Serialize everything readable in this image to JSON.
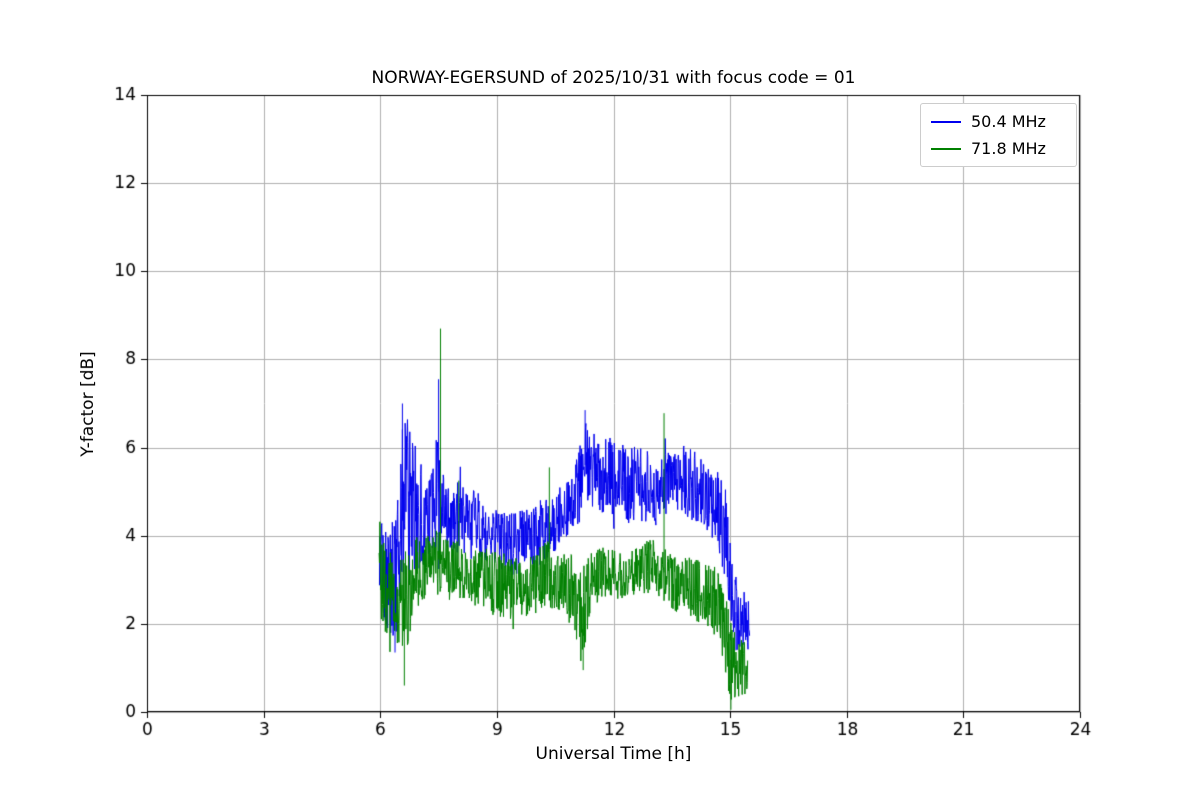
{
  "title": "NORWAY-EGERSUND of 2025/10/31 with focus code = 01",
  "chart_data": {
    "type": "line",
    "title": "NORWAY-EGERSUND of 2025/10/31 with focus code = 01",
    "xlabel": "Universal Time [h]",
    "ylabel": "Y-factor [dB]",
    "xlim": [
      0,
      24
    ],
    "ylim": [
      0,
      14
    ],
    "xticks": [
      0,
      3,
      6,
      9,
      12,
      15,
      18,
      21,
      24
    ],
    "yticks": [
      0,
      2,
      4,
      6,
      8,
      10,
      12,
      14
    ],
    "grid": true,
    "grid_color": "#b0b0b0",
    "axis_color": "#000000",
    "legend_position": "upper right",
    "sample_step_h": 0.01,
    "series": [
      {
        "name": "50.4 MHz",
        "color": "#0000ee",
        "x_range": [
          5.98,
          15.5
        ],
        "envelope": [
          [
            5.98,
            3.3,
            1.1
          ],
          [
            6.2,
            3.0,
            1.2
          ],
          [
            6.4,
            3.1,
            1.4
          ],
          [
            6.55,
            4.8,
            1.7
          ],
          [
            6.7,
            5.0,
            1.8
          ],
          [
            6.9,
            4.6,
            1.5
          ],
          [
            7.1,
            4.3,
            1.0
          ],
          [
            7.3,
            4.4,
            1.0
          ],
          [
            7.5,
            5.0,
            1.5
          ],
          [
            7.65,
            4.5,
            0.9
          ],
          [
            7.9,
            4.4,
            0.9
          ],
          [
            8.2,
            4.3,
            0.8
          ],
          [
            8.5,
            4.2,
            0.8
          ],
          [
            8.8,
            4.0,
            0.7
          ],
          [
            9.1,
            3.9,
            0.7
          ],
          [
            9.4,
            3.8,
            0.7
          ],
          [
            9.7,
            3.9,
            0.7
          ],
          [
            10.0,
            4.0,
            0.7
          ],
          [
            10.3,
            4.2,
            0.8
          ],
          [
            10.6,
            4.4,
            0.7
          ],
          [
            10.9,
            4.7,
            0.6
          ],
          [
            11.15,
            5.2,
            0.9
          ],
          [
            11.3,
            5.7,
            0.9
          ],
          [
            11.5,
            5.5,
            0.9
          ],
          [
            11.8,
            5.4,
            0.9
          ],
          [
            12.1,
            5.3,
            0.9
          ],
          [
            12.5,
            5.2,
            0.9
          ],
          [
            12.9,
            5.1,
            0.8
          ],
          [
            13.2,
            5.0,
            0.8
          ],
          [
            13.5,
            5.2,
            0.8
          ],
          [
            13.8,
            5.3,
            0.8
          ],
          [
            14.1,
            5.1,
            0.8
          ],
          [
            14.4,
            4.9,
            0.8
          ],
          [
            14.7,
            4.6,
            0.9
          ],
          [
            14.95,
            3.8,
            1.2
          ],
          [
            15.1,
            2.4,
            0.9
          ],
          [
            15.25,
            2.0,
            0.7
          ],
          [
            15.5,
            2.0,
            0.6
          ]
        ],
        "spikes": [
          [
            6.38,
            1.35
          ],
          [
            6.57,
            7.0
          ],
          [
            7.5,
            7.55
          ],
          [
            11.27,
            6.85
          ],
          [
            15.15,
            1.4
          ]
        ]
      },
      {
        "name": "71.8 MHz",
        "color": "#008000",
        "x_range": [
          5.97,
          15.45
        ],
        "envelope": [
          [
            5.97,
            3.0,
            1.4
          ],
          [
            6.2,
            2.7,
            1.0
          ],
          [
            6.45,
            2.5,
            1.0
          ],
          [
            6.7,
            2.6,
            1.1
          ],
          [
            6.95,
            3.1,
            0.9
          ],
          [
            7.2,
            3.4,
            0.7
          ],
          [
            7.45,
            3.4,
            0.8
          ],
          [
            7.7,
            3.3,
            0.6
          ],
          [
            8.0,
            3.3,
            0.7
          ],
          [
            8.3,
            3.1,
            0.6
          ],
          [
            8.6,
            3.0,
            0.7
          ],
          [
            8.9,
            3.0,
            0.8
          ],
          [
            9.2,
            2.9,
            0.8
          ],
          [
            9.5,
            2.8,
            0.7
          ],
          [
            9.8,
            2.8,
            0.7
          ],
          [
            10.1,
            3.0,
            0.8
          ],
          [
            10.4,
            3.1,
            0.8
          ],
          [
            10.7,
            2.9,
            0.7
          ],
          [
            11.0,
            2.7,
            0.9
          ],
          [
            11.2,
            2.3,
            1.2
          ],
          [
            11.4,
            3.0,
            0.7
          ],
          [
            11.7,
            3.2,
            0.6
          ],
          [
            12.0,
            3.1,
            0.6
          ],
          [
            12.4,
            3.2,
            0.6
          ],
          [
            12.8,
            3.3,
            0.6
          ],
          [
            13.1,
            3.3,
            0.6
          ],
          [
            13.4,
            3.1,
            0.7
          ],
          [
            13.7,
            2.9,
            0.7
          ],
          [
            14.0,
            2.8,
            0.7
          ],
          [
            14.3,
            2.7,
            0.7
          ],
          [
            14.6,
            2.5,
            0.8
          ],
          [
            14.85,
            2.0,
            1.0
          ],
          [
            15.0,
            1.2,
            1.0
          ],
          [
            15.2,
            1.0,
            0.7
          ],
          [
            15.45,
            1.0,
            0.6
          ]
        ],
        "spikes": [
          [
            6.62,
            0.6
          ],
          [
            7.55,
            8.7
          ],
          [
            8.02,
            5.25
          ],
          [
            10.35,
            5.55
          ],
          [
            11.22,
            0.95
          ],
          [
            13.3,
            6.78
          ],
          [
            15.02,
            0.05
          ]
        ]
      }
    ]
  },
  "legend": {
    "items": [
      {
        "label": "50.4 MHz",
        "color": "#0000ee"
      },
      {
        "label": "71.8 MHz",
        "color": "#008000"
      }
    ]
  }
}
